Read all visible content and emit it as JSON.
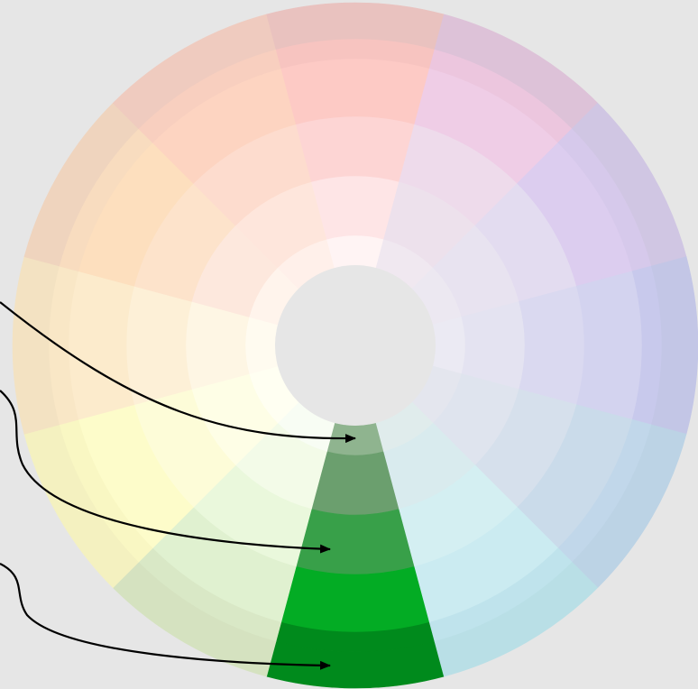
{
  "diagram": {
    "type": "color-wheel",
    "background": "#e6e6e6",
    "center_color": "#e6e6e6",
    "outline_color": "#ffffff",
    "highlighted_segment": "green",
    "arrow_color": "#000000",
    "arrow_targets": [
      "green-ring-2",
      "green-ring-4",
      "green-ring-6"
    ],
    "segments": [
      {
        "name": "green",
        "colors": [
          "#8fb48f",
          "#6b9f6e",
          "#38a049",
          "#03ac24",
          "#008a1c",
          "#008a1c"
        ]
      },
      {
        "name": "yellow-green",
        "colors": [
          "#f8fdf4",
          "#f3fbe8",
          "#eaf8dc",
          "#e0f1d0",
          "#d9e8c6",
          "#d5e2c0"
        ]
      },
      {
        "name": "yellow",
        "colors": [
          "#fffff2",
          "#fefee6",
          "#fdfcd8",
          "#fdfcca",
          "#f9f7c3",
          "#f4f1c0"
        ]
      },
      {
        "name": "yellow-orange",
        "colors": [
          "#fffbf0",
          "#fef6e4",
          "#fdf0d7",
          "#fcebcc",
          "#f9e7c6",
          "#f3e2c2"
        ]
      },
      {
        "name": "orange",
        "colors": [
          "#fff4ec",
          "#fde8dd",
          "#fde3cb",
          "#fddfbe",
          "#f8dcbf",
          "#efd4be"
        ]
      },
      {
        "name": "red-orange",
        "colors": [
          "#fff0ea",
          "#fee6dc",
          "#fddcce",
          "#fdd4c1",
          "#f8cfbf",
          "#efcbbf"
        ]
      },
      {
        "name": "red",
        "colors": [
          "#fff4f4",
          "#fee5e6",
          "#fdd5d4",
          "#fdcac5",
          "#f7c4c0",
          "#e9c2bf"
        ]
      },
      {
        "name": "red-violet",
        "colors": [
          "#f0e8f0",
          "#ede1ec",
          "#eedbeb",
          "#efcde6",
          "#ecc6de",
          "#ddc2d8"
        ]
      },
      {
        "name": "violet",
        "colors": [
          "#ece8f1",
          "#e8e3f0",
          "#e3dcf0",
          "#dccdef",
          "#d6c9eb",
          "#d0c6e3"
        ]
      },
      {
        "name": "blue-violet",
        "colors": [
          "#ebeaf3",
          "#e4e3f1",
          "#dad9f0",
          "#d3d3ef",
          "#c8c9ec",
          "#c3c6e6"
        ]
      },
      {
        "name": "blue",
        "colors": [
          "#e4e6ee",
          "#dfe4ee",
          "#d6e0ec",
          "#cadbea",
          "#c1d7ea",
          "#bcd3e5"
        ]
      },
      {
        "name": "blue-green",
        "colors": [
          "#e0ecec",
          "#d9ebee",
          "#d4eff2",
          "#cbebf1",
          "#bfe3ec",
          "#b9dfe6"
        ]
      }
    ]
  }
}
